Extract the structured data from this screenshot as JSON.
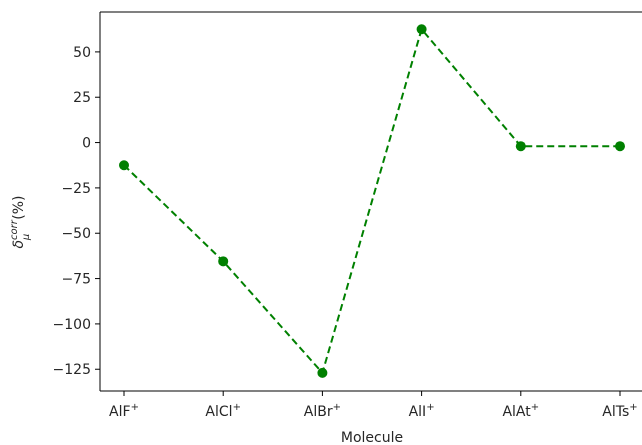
{
  "chart_data": {
    "type": "line",
    "categories": [
      "AlF",
      "AlCl",
      "AlBr",
      "AlI",
      "AlAt",
      "AlTs"
    ],
    "category_superscript": "+",
    "series": [
      {
        "values": [
          -12.5,
          -65.5,
          -127.0,
          62.5,
          -2.0,
          -2.0
        ]
      }
    ],
    "xlabel": "Molecule",
    "ylabel": {
      "base": "δ",
      "sub": "μ",
      "sup": "corr",
      "unit": "(%)"
    },
    "y_ticks": [
      50,
      25,
      0,
      -25,
      -50,
      -75,
      -100,
      -125
    ],
    "ylim": [
      -137,
      72
    ],
    "line_style": "dashed",
    "marker": "circle",
    "color": "#008000",
    "grid": false
  }
}
